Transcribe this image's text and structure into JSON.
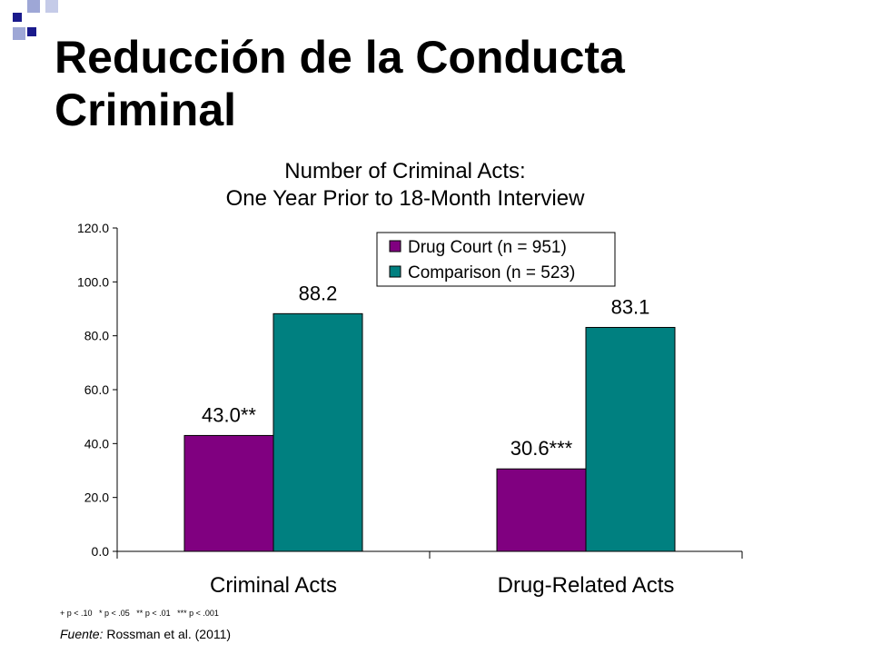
{
  "slide": {
    "title_line1": "Reducción de la Conducta",
    "title_line2": "Criminal",
    "footnote": "+ p < .10   * p < .05   ** p < .01   *** p < .001",
    "source_label": "Fuente:",
    "source_text": " Rossman et al. (2011)"
  },
  "colors": {
    "series1": "#800080",
    "series2": "#008080",
    "decor_dark": "#1a1a8c",
    "decor_light": "#9ea7d6"
  },
  "chart_data": {
    "type": "bar",
    "title": "Number of Criminal Acts:",
    "subtitle": "One Year Prior to 18-Month Interview",
    "categories": [
      "Criminal Acts",
      "Drug-Related Acts"
    ],
    "series": [
      {
        "name": "Drug Court (n = 951)",
        "values": [
          43.0,
          30.6
        ],
        "labels": [
          "43.0**",
          "30.6***"
        ]
      },
      {
        "name": "Comparison (n = 523)",
        "values": [
          88.2,
          83.1
        ],
        "labels": [
          "88.2",
          "83.1"
        ]
      }
    ],
    "ylim": [
      0,
      120
    ],
    "yticks": [
      "0.0",
      "20.0",
      "40.0",
      "60.0",
      "80.0",
      "100.0",
      "120.0"
    ],
    "legend_position": "top-right",
    "grid": false
  }
}
